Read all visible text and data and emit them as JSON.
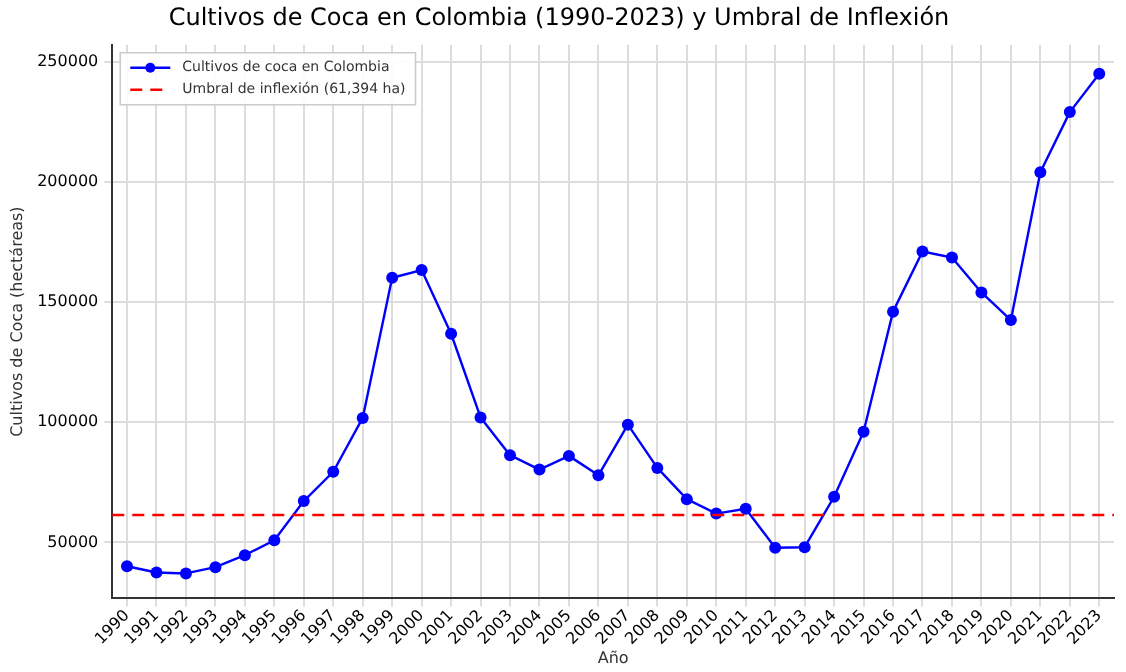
{
  "chart_data": {
    "type": "line",
    "title": "Cultivos de Coca en Colombia (1990-2023) y Umbral de Inflexión",
    "xlabel": "Año",
    "ylabel": "Cultivos de Coca (hectáreas)",
    "categories": [
      "1990",
      "1991",
      "1992",
      "1993",
      "1994",
      "1995",
      "1996",
      "1997",
      "1998",
      "1999",
      "2000",
      "2001",
      "2002",
      "2003",
      "2004",
      "2005",
      "2006",
      "2007",
      "2008",
      "2009",
      "2010",
      "2011",
      "2012",
      "2013",
      "2014",
      "2015",
      "2016",
      "2017",
      "2018",
      "2019",
      "2020",
      "2021",
      "2022",
      "2023"
    ],
    "series": [
      {
        "name": "Cultivos de coca en Colombia",
        "color": "#0000ff",
        "values": [
          40100,
          37500,
          37100,
          39700,
          44700,
          50900,
          67200,
          79400,
          101800,
          160100,
          163300,
          136800,
          102000,
          86300,
          80300,
          86000,
          77900,
          99000,
          81000,
          68000,
          62000,
          64000,
          47800,
          48000,
          69000,
          96000,
          146000,
          171000,
          168500,
          154000,
          142500,
          204000,
          229000,
          245000
        ]
      }
    ],
    "ref_lines": [
      {
        "axis": "y",
        "value": 61394,
        "label": "Umbral de inflexión (61,394 ha)",
        "color": "#ff0000",
        "line_style": "dashed"
      }
    ],
    "ylim": [
      26700,
      257000
    ],
    "yticks": [
      50000,
      100000,
      150000,
      200000,
      250000
    ],
    "grid": true,
    "legend": "top left",
    "marker": "circle",
    "line_style": "solid"
  }
}
